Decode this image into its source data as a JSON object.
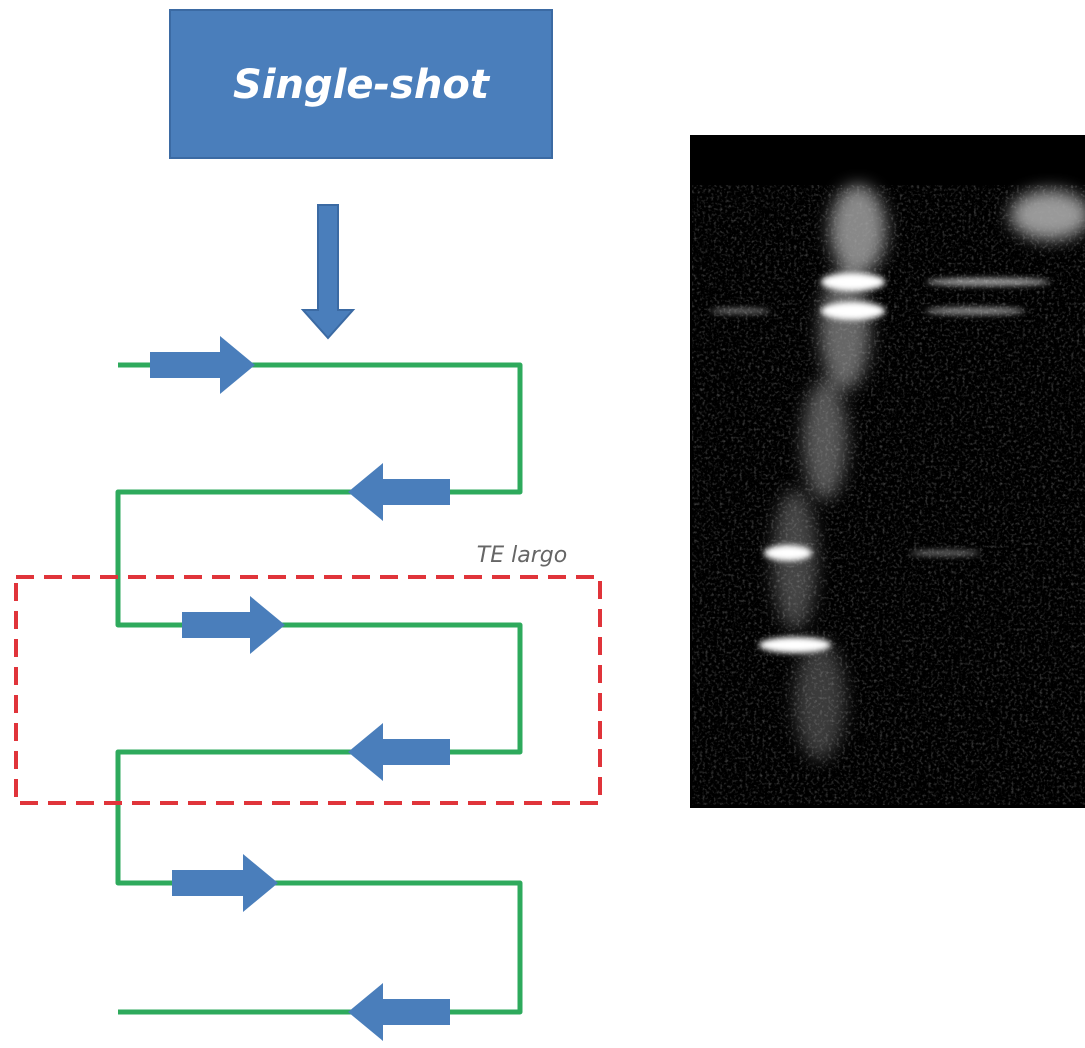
{
  "title": "Single-shot",
  "annotation": "TE largo"
}
